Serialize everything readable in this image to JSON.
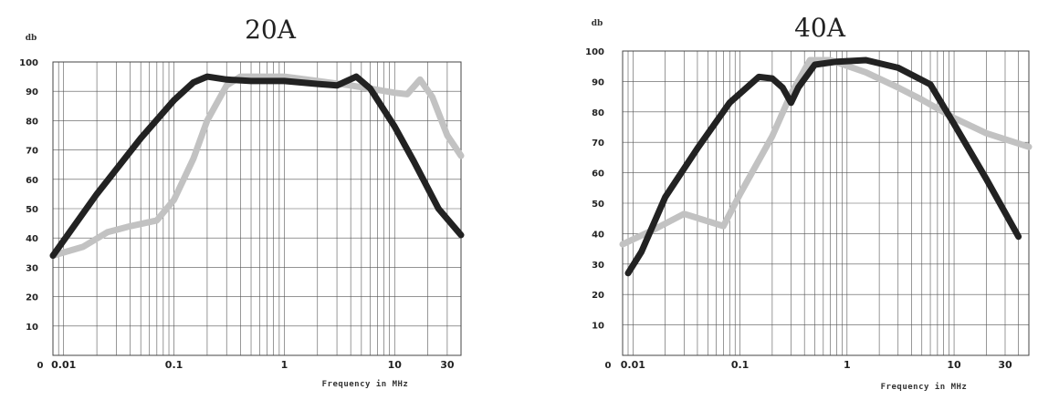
{
  "chart_data": [
    {
      "type": "line",
      "title": "20A",
      "ylabel": "db",
      "xlabel": "Frequency in MHz",
      "x_scale": "log",
      "xlim": [
        0.008,
        40
      ],
      "ylim": [
        0,
        100
      ],
      "x_ticks": [
        {
          "value": 0.01,
          "label": "0.01"
        },
        {
          "value": 0.1,
          "label": "0.1"
        },
        {
          "value": 1,
          "label": "1"
        },
        {
          "value": 10,
          "label": "10"
        },
        {
          "value": 30,
          "label": "30"
        }
      ],
      "y_ticks": [
        {
          "value": 0,
          "label": "0"
        },
        {
          "value": 10,
          "label": "10"
        },
        {
          "value": 20,
          "label": "20"
        },
        {
          "value": 30,
          "label": "30"
        },
        {
          "value": 40,
          "label": "40"
        },
        {
          "value": 50,
          "label": "50"
        },
        {
          "value": 60,
          "label": "60"
        },
        {
          "value": 70,
          "label": "70"
        },
        {
          "value": 80,
          "label": "80"
        },
        {
          "value": 90,
          "label": "90"
        },
        {
          "value": 100,
          "label": "100"
        }
      ],
      "grid": true,
      "series": [
        {
          "color": "#222222",
          "points": [
            [
              0.008,
              34
            ],
            [
              0.02,
              55
            ],
            [
              0.05,
              74
            ],
            [
              0.1,
              87
            ],
            [
              0.15,
              93
            ],
            [
              0.2,
              95
            ],
            [
              0.3,
              94
            ],
            [
              0.5,
              93.5
            ],
            [
              1,
              93.5
            ],
            [
              2,
              92.5
            ],
            [
              3,
              92
            ],
            [
              4.5,
              95
            ],
            [
              6,
              91
            ],
            [
              10,
              78
            ],
            [
              15,
              66
            ],
            [
              25,
              50
            ],
            [
              40,
              41
            ]
          ]
        },
        {
          "color": "#c2c2c2",
          "points": [
            [
              0.008,
              34
            ],
            [
              0.015,
              37
            ],
            [
              0.025,
              42
            ],
            [
              0.04,
              44
            ],
            [
              0.07,
              46
            ],
            [
              0.1,
              53
            ],
            [
              0.15,
              67
            ],
            [
              0.2,
              80
            ],
            [
              0.3,
              92
            ],
            [
              0.4,
              95
            ],
            [
              0.6,
              95
            ],
            [
              1,
              95
            ],
            [
              2,
              93.5
            ],
            [
              4,
              92
            ],
            [
              7,
              90.5
            ],
            [
              10,
              89.5
            ],
            [
              13,
              89
            ],
            [
              17,
              94
            ],
            [
              22,
              88
            ],
            [
              30,
              75
            ],
            [
              40,
              68
            ]
          ]
        }
      ]
    },
    {
      "type": "line",
      "title": "40A",
      "ylabel": "db",
      "xlabel": "Frequency in MHz",
      "x_scale": "log",
      "xlim": [
        0.008,
        50
      ],
      "ylim": [
        0,
        100
      ],
      "x_ticks": [
        {
          "value": 0.01,
          "label": "0.01"
        },
        {
          "value": 0.1,
          "label": "0.1"
        },
        {
          "value": 1,
          "label": "1"
        },
        {
          "value": 10,
          "label": "10"
        },
        {
          "value": 30,
          "label": "30"
        }
      ],
      "y_ticks": [
        {
          "value": 0,
          "label": "0"
        },
        {
          "value": 10,
          "label": "10"
        },
        {
          "value": 20,
          "label": "20"
        },
        {
          "value": 30,
          "label": "30"
        },
        {
          "value": 40,
          "label": "40"
        },
        {
          "value": 50,
          "label": "50"
        },
        {
          "value": 60,
          "label": "60"
        },
        {
          "value": 70,
          "label": "70"
        },
        {
          "value": 80,
          "label": "80"
        },
        {
          "value": 90,
          "label": "90"
        },
        {
          "value": 100,
          "label": "100"
        }
      ],
      "grid": true,
      "series": [
        {
          "color": "#222222",
          "points": [
            [
              0.009,
              27
            ],
            [
              0.012,
              34
            ],
            [
              0.02,
              52
            ],
            [
              0.04,
              68
            ],
            [
              0.08,
              83
            ],
            [
              0.15,
              91.5
            ],
            [
              0.2,
              91
            ],
            [
              0.25,
              88
            ],
            [
              0.3,
              83
            ],
            [
              0.35,
              88
            ],
            [
              0.5,
              95.5
            ],
            [
              0.8,
              96.5
            ],
            [
              1.5,
              97
            ],
            [
              3,
              94.5
            ],
            [
              6,
              89
            ],
            [
              10,
              76
            ],
            [
              20,
              58
            ],
            [
              40,
              39
            ]
          ]
        },
        {
          "color": "#c2c2c2",
          "points": [
            [
              0.008,
              36.5
            ],
            [
              0.015,
              41
            ],
            [
              0.03,
              46.5
            ],
            [
              0.07,
              42.5
            ],
            [
              0.1,
              53
            ],
            [
              0.2,
              72
            ],
            [
              0.3,
              86
            ],
            [
              0.45,
              97
            ],
            [
              0.7,
              97
            ],
            [
              1.5,
              93
            ],
            [
              3,
              88
            ],
            [
              5,
              84
            ],
            [
              10,
              78
            ],
            [
              20,
              73
            ],
            [
              50,
              68.5
            ]
          ]
        }
      ]
    }
  ]
}
